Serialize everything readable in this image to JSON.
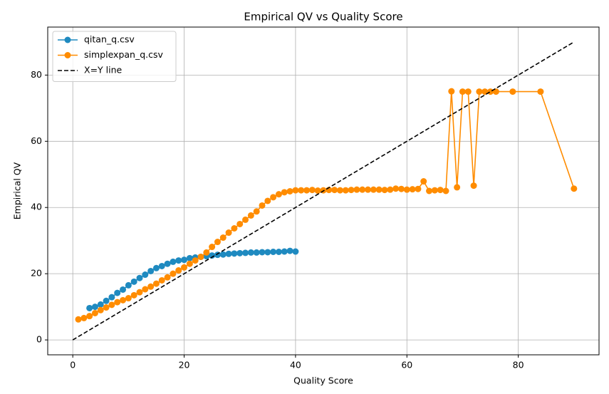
{
  "chart_data": {
    "type": "line",
    "title": "Empirical QV vs Quality Score",
    "x_label": "Quality Score",
    "y_label": "Empirical QV",
    "xlim": [
      -4.5,
      94.5
    ],
    "ylim": [
      -4.5,
      94.5
    ],
    "xticks": [
      0,
      20,
      40,
      60,
      80
    ],
    "yticks": [
      0,
      20,
      40,
      60,
      80
    ],
    "grid": true,
    "legend": "upper left",
    "series": [
      {
        "name": "qitan_q.csv",
        "color": "#1f8ac0",
        "linestyle": "solid",
        "marker": "o",
        "x": [
          3,
          4,
          5,
          6,
          7,
          8,
          9,
          10,
          11,
          12,
          13,
          14,
          15,
          16,
          17,
          18,
          19,
          20,
          21,
          22,
          23,
          24,
          25,
          26,
          27,
          28,
          29,
          30,
          31,
          32,
          33,
          34,
          35,
          36,
          37,
          38,
          39,
          40
        ],
        "values": [
          9.6,
          10.0,
          10.7,
          11.8,
          12.9,
          14.2,
          15.2,
          16.5,
          17.6,
          18.7,
          19.7,
          20.8,
          21.7,
          22.3,
          23.0,
          23.6,
          24.0,
          24.2,
          24.7,
          24.9,
          25.1,
          25.3,
          25.5,
          25.7,
          25.8,
          26.0,
          26.1,
          26.2,
          26.3,
          26.4,
          26.4,
          26.5,
          26.5,
          26.6,
          26.6,
          26.7,
          26.9,
          26.7
        ]
      },
      {
        "name": "simplexpan_q.csv",
        "color": "#ff8c00",
        "linestyle": "solid",
        "marker": "o",
        "x": [
          1,
          2,
          3,
          4,
          5,
          6,
          7,
          8,
          9,
          10,
          11,
          12,
          13,
          14,
          15,
          16,
          17,
          18,
          19,
          20,
          21,
          22,
          23,
          24,
          25,
          26,
          27,
          28,
          29,
          30,
          31,
          32,
          33,
          34,
          35,
          36,
          37,
          38,
          39,
          40,
          41,
          42,
          43,
          44,
          45,
          46,
          47,
          48,
          49,
          50,
          51,
          52,
          53,
          54,
          55,
          56,
          57,
          58,
          59,
          60,
          61,
          62,
          63,
          64,
          65,
          66,
          67,
          68,
          69,
          70,
          71,
          72,
          73,
          74,
          75,
          76,
          79,
          84,
          90
        ],
        "values": [
          6.2,
          6.6,
          7.2,
          8.1,
          9.0,
          9.8,
          10.6,
          11.4,
          12.0,
          12.6,
          13.5,
          14.4,
          15.3,
          16.1,
          17.0,
          18.0,
          18.9,
          20.0,
          21.0,
          21.9,
          23.0,
          24.0,
          25.1,
          26.4,
          28.1,
          29.6,
          30.9,
          32.4,
          33.7,
          35.0,
          36.3,
          37.6,
          38.8,
          40.6,
          42.0,
          43.1,
          44.0,
          44.6,
          44.9,
          45.2,
          45.2,
          45.2,
          45.3,
          45.1,
          45.2,
          45.3,
          45.3,
          45.2,
          45.2,
          45.3,
          45.4,
          45.4,
          45.4,
          45.4,
          45.4,
          45.3,
          45.4,
          45.7,
          45.6,
          45.4,
          45.5,
          45.6,
          47.9,
          45.0,
          45.2,
          45.3,
          45.0,
          75.1,
          46.1,
          75.0,
          75.0,
          46.6,
          75.0,
          75.0,
          75.0,
          75.0,
          75.0,
          75.0,
          45.7
        ]
      },
      {
        "name": "X=Y line",
        "color": "#000000",
        "linestyle": "dashed",
        "marker": null,
        "x": [
          0,
          90
        ],
        "values": [
          0,
          90
        ]
      }
    ]
  }
}
